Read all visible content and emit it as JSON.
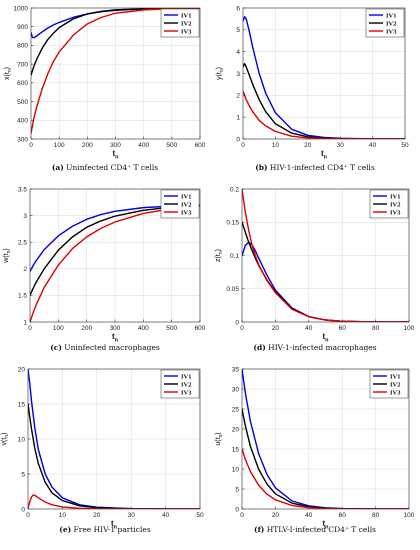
{
  "figure": {
    "line_colors": {
      "IV1": "#0000dd",
      "IV2": "#000000",
      "IV3": "#e00000"
    }
  },
  "chart_data": [
    {
      "type": "line",
      "panel_id": "a",
      "caption_label": "(a)",
      "caption_text": "Uninfected CD4⁺ T cells",
      "xlabel": "t",
      "xlabel_sub": "n",
      "ylabel": "x(t",
      "ylabel_sub": "n",
      "ylabel_close": ")",
      "xlim": [
        0,
        600
      ],
      "ylim": [
        300,
        1000
      ],
      "xticks": [
        0,
        100,
        200,
        300,
        400,
        500,
        600
      ],
      "yticks": [
        300,
        400,
        500,
        600,
        700,
        800,
        900,
        1000
      ],
      "legend_position": "top-right",
      "series": [
        {
          "name": "IV1",
          "color": "#0000dd",
          "x": [
            0,
            5,
            10,
            20,
            40,
            60,
            80,
            100,
            150,
            200,
            250,
            300,
            400,
            500,
            600
          ],
          "y": [
            870,
            843,
            841,
            850,
            873,
            893,
            910,
            923,
            950,
            968,
            980,
            988,
            995,
            998,
            1000
          ]
        },
        {
          "name": "IV2",
          "color": "#000000",
          "x": [
            0,
            5,
            10,
            20,
            40,
            60,
            80,
            100,
            150,
            200,
            250,
            300,
            400,
            500,
            600
          ],
          "y": [
            640,
            665,
            688,
            725,
            786,
            832,
            866,
            895,
            942,
            968,
            982,
            990,
            996,
            998,
            1000
          ]
        },
        {
          "name": "IV3",
          "color": "#e00000",
          "x": [
            0,
            5,
            10,
            20,
            40,
            60,
            80,
            100,
            150,
            200,
            250,
            300,
            400,
            500,
            600
          ],
          "y": [
            330,
            370,
            410,
            470,
            570,
            650,
            715,
            765,
            855,
            915,
            950,
            972,
            990,
            997,
            1000
          ]
        }
      ]
    },
    {
      "type": "line",
      "panel_id": "b",
      "caption_label": "(b)",
      "caption_text": "HIV-1-infected CD4⁺ T cells",
      "xlabel": "t",
      "xlabel_sub": "n",
      "ylabel": "y(t",
      "ylabel_sub": "n",
      "ylabel_close": ")",
      "xlim": [
        0,
        50
      ],
      "ylim": [
        0,
        6
      ],
      "xticks": [
        0,
        10,
        20,
        30,
        40,
        50
      ],
      "yticks": [
        0,
        1,
        2,
        3,
        4,
        5,
        6
      ],
      "legend_position": "top-right",
      "series": [
        {
          "name": "IV1",
          "color": "#0000dd",
          "x": [
            0,
            0.5,
            1,
            2,
            3,
            5,
            7,
            10,
            15,
            20,
            25,
            30,
            40,
            50
          ],
          "y": [
            5.4,
            5.6,
            5.5,
            4.9,
            4.2,
            3.0,
            2.1,
            1.2,
            0.45,
            0.17,
            0.07,
            0.03,
            0.01,
            0.0
          ]
        },
        {
          "name": "IV2",
          "color": "#000000",
          "x": [
            0,
            0.5,
            1,
            2,
            3,
            5,
            7,
            10,
            15,
            20,
            25,
            30,
            40,
            50
          ],
          "y": [
            3.3,
            3.45,
            3.3,
            2.9,
            2.5,
            1.8,
            1.25,
            0.7,
            0.27,
            0.1,
            0.04,
            0.02,
            0.0,
            0.0
          ]
        },
        {
          "name": "IV3",
          "color": "#e00000",
          "x": [
            0,
            0.5,
            1,
            2,
            3,
            5,
            7,
            10,
            15,
            20,
            25,
            30,
            40,
            50
          ],
          "y": [
            2.2,
            2.0,
            1.8,
            1.5,
            1.25,
            0.85,
            0.6,
            0.35,
            0.13,
            0.05,
            0.02,
            0.01,
            0.0,
            0.0
          ]
        }
      ]
    },
    {
      "type": "line",
      "panel_id": "c",
      "caption_label": "(c)",
      "caption_text": "Uninfected macrophages",
      "xlabel": "t",
      "xlabel_sub": "n",
      "ylabel": "w(t",
      "ylabel_sub": "n",
      "ylabel_close": ")",
      "xlim": [
        0,
        600
      ],
      "ylim": [
        1,
        3.5
      ],
      "xticks": [
        0,
        100,
        200,
        300,
        400,
        500,
        600
      ],
      "yticks": [
        1,
        1.5,
        2,
        2.5,
        3,
        3.5
      ],
      "legend_position": "top-right",
      "series": [
        {
          "name": "IV1",
          "color": "#0000dd",
          "x": [
            0,
            10,
            20,
            50,
            100,
            150,
            200,
            250,
            300,
            400,
            500,
            600
          ],
          "y": [
            1.95,
            2.05,
            2.14,
            2.36,
            2.62,
            2.8,
            2.93,
            3.02,
            3.08,
            3.15,
            3.18,
            3.19
          ]
        },
        {
          "name": "IV2",
          "color": "#000000",
          "x": [
            0,
            10,
            20,
            50,
            100,
            150,
            200,
            250,
            300,
            400,
            500,
            600
          ],
          "y": [
            1.5,
            1.62,
            1.73,
            2.0,
            2.35,
            2.6,
            2.78,
            2.9,
            2.99,
            3.1,
            3.16,
            3.19
          ]
        },
        {
          "name": "IV3",
          "color": "#e00000",
          "x": [
            0,
            10,
            20,
            50,
            100,
            150,
            200,
            250,
            300,
            400,
            500,
            600
          ],
          "y": [
            1.0,
            1.16,
            1.3,
            1.65,
            2.07,
            2.38,
            2.6,
            2.76,
            2.88,
            3.04,
            3.13,
            3.18
          ]
        }
      ]
    },
    {
      "type": "line",
      "panel_id": "d",
      "caption_label": "(d)",
      "caption_text": "HIV-1-infected macrophages",
      "xlabel": "t",
      "xlabel_sub": "n",
      "ylabel": "z(t",
      "ylabel_sub": "n",
      "ylabel_close": ")",
      "xlim": [
        0,
        100
      ],
      "ylim": [
        0,
        0.2
      ],
      "xticks": [
        0,
        20,
        40,
        60,
        80,
        100
      ],
      "yticks": [
        0,
        0.05,
        0.1,
        0.15,
        0.2
      ],
      "legend_position": "top-right",
      "series": [
        {
          "name": "IV1",
          "color": "#0000dd",
          "x": [
            0,
            2,
            4,
            6,
            8,
            10,
            15,
            20,
            30,
            40,
            50,
            60,
            80,
            100
          ],
          "y": [
            0.1,
            0.115,
            0.12,
            0.116,
            0.107,
            0.096,
            0.07,
            0.048,
            0.021,
            0.008,
            0.003,
            0.001,
            0.0,
            0.0
          ]
        },
        {
          "name": "IV2",
          "color": "#000000",
          "x": [
            0,
            2,
            4,
            6,
            8,
            10,
            15,
            20,
            30,
            40,
            50,
            60,
            80,
            100
          ],
          "y": [
            0.15,
            0.135,
            0.12,
            0.108,
            0.096,
            0.085,
            0.063,
            0.045,
            0.02,
            0.008,
            0.003,
            0.001,
            0.0,
            0.0
          ]
        },
        {
          "name": "IV3",
          "color": "#e00000",
          "x": [
            0,
            2,
            4,
            6,
            8,
            10,
            15,
            20,
            30,
            40,
            50,
            60,
            80,
            100
          ],
          "y": [
            0.2,
            0.165,
            0.138,
            0.116,
            0.1,
            0.086,
            0.062,
            0.044,
            0.019,
            0.008,
            0.003,
            0.001,
            0.0,
            0.0
          ]
        }
      ]
    },
    {
      "type": "line",
      "panel_id": "e",
      "caption_label": "(e)",
      "caption_text": "Free HIV-1 particles",
      "xlabel": "t",
      "xlabel_sub": "n",
      "ylabel": "v(t",
      "ylabel_sub": "n",
      "ylabel_close": ")",
      "xlim": [
        0,
        50
      ],
      "ylim": [
        0,
        20
      ],
      "xticks": [
        0,
        10,
        20,
        30,
        40,
        50
      ],
      "yticks": [
        0,
        5,
        10,
        15,
        20
      ],
      "legend_position": "top-right",
      "series": [
        {
          "name": "IV1",
          "color": "#0000dd",
          "x": [
            0,
            0.5,
            1,
            2,
            3,
            5,
            7,
            10,
            15,
            20,
            30,
            40,
            50
          ],
          "y": [
            20,
            18,
            15.5,
            11.5,
            8.5,
            5.0,
            3.1,
            1.6,
            0.6,
            0.25,
            0.05,
            0.01,
            0.0
          ]
        },
        {
          "name": "IV2",
          "color": "#000000",
          "x": [
            0,
            0.5,
            1,
            2,
            3,
            5,
            7,
            10,
            15,
            20,
            30,
            40,
            50
          ],
          "y": [
            15,
            13.2,
            11.5,
            8.6,
            6.5,
            3.8,
            2.3,
            1.2,
            0.45,
            0.18,
            0.04,
            0.01,
            0.0
          ]
        },
        {
          "name": "IV3",
          "color": "#e00000",
          "x": [
            0,
            0.5,
            1,
            1.5,
            2,
            3,
            5,
            7,
            10,
            15,
            20,
            30,
            40,
            50
          ],
          "y": [
            0.1,
            1.0,
            1.7,
            2.0,
            1.95,
            1.6,
            1.0,
            0.6,
            0.3,
            0.1,
            0.04,
            0.01,
            0.0,
            0.0
          ]
        }
      ]
    },
    {
      "type": "line",
      "panel_id": "f",
      "caption_label": "(f)",
      "caption_text": "HTLV-I-infected CD4⁺ T cells",
      "xlabel": "t",
      "xlabel_sub": "n",
      "ylabel": "u(t",
      "ylabel_sub": "n",
      "ylabel_close": ")",
      "xlim": [
        0,
        100
      ],
      "ylim": [
        0,
        35
      ],
      "xticks": [
        0,
        20,
        40,
        60,
        80,
        100
      ],
      "yticks": [
        0,
        5,
        10,
        15,
        20,
        25,
        30,
        35
      ],
      "legend_position": "top-right",
      "series": [
        {
          "name": "IV1",
          "color": "#0000dd",
          "x": [
            0,
            2,
            5,
            10,
            15,
            20,
            30,
            40,
            50,
            60,
            80,
            100
          ],
          "y": [
            35,
            29,
            22,
            13.8,
            8.6,
            5.3,
            2.0,
            0.8,
            0.3,
            0.1,
            0.02,
            0.0
          ]
        },
        {
          "name": "IV2",
          "color": "#000000",
          "x": [
            0,
            2,
            5,
            10,
            15,
            20,
            30,
            40,
            50,
            60,
            80,
            100
          ],
          "y": [
            25,
            20.8,
            15.7,
            9.9,
            6.2,
            3.8,
            1.45,
            0.55,
            0.2,
            0.08,
            0.01,
            0.0
          ]
        },
        {
          "name": "IV3",
          "color": "#e00000",
          "x": [
            0,
            2,
            5,
            10,
            15,
            20,
            30,
            40,
            50,
            60,
            80,
            100
          ],
          "y": [
            15,
            12.4,
            9.4,
            5.9,
            3.7,
            2.3,
            0.87,
            0.33,
            0.12,
            0.05,
            0.01,
            0.0
          ]
        }
      ]
    }
  ]
}
